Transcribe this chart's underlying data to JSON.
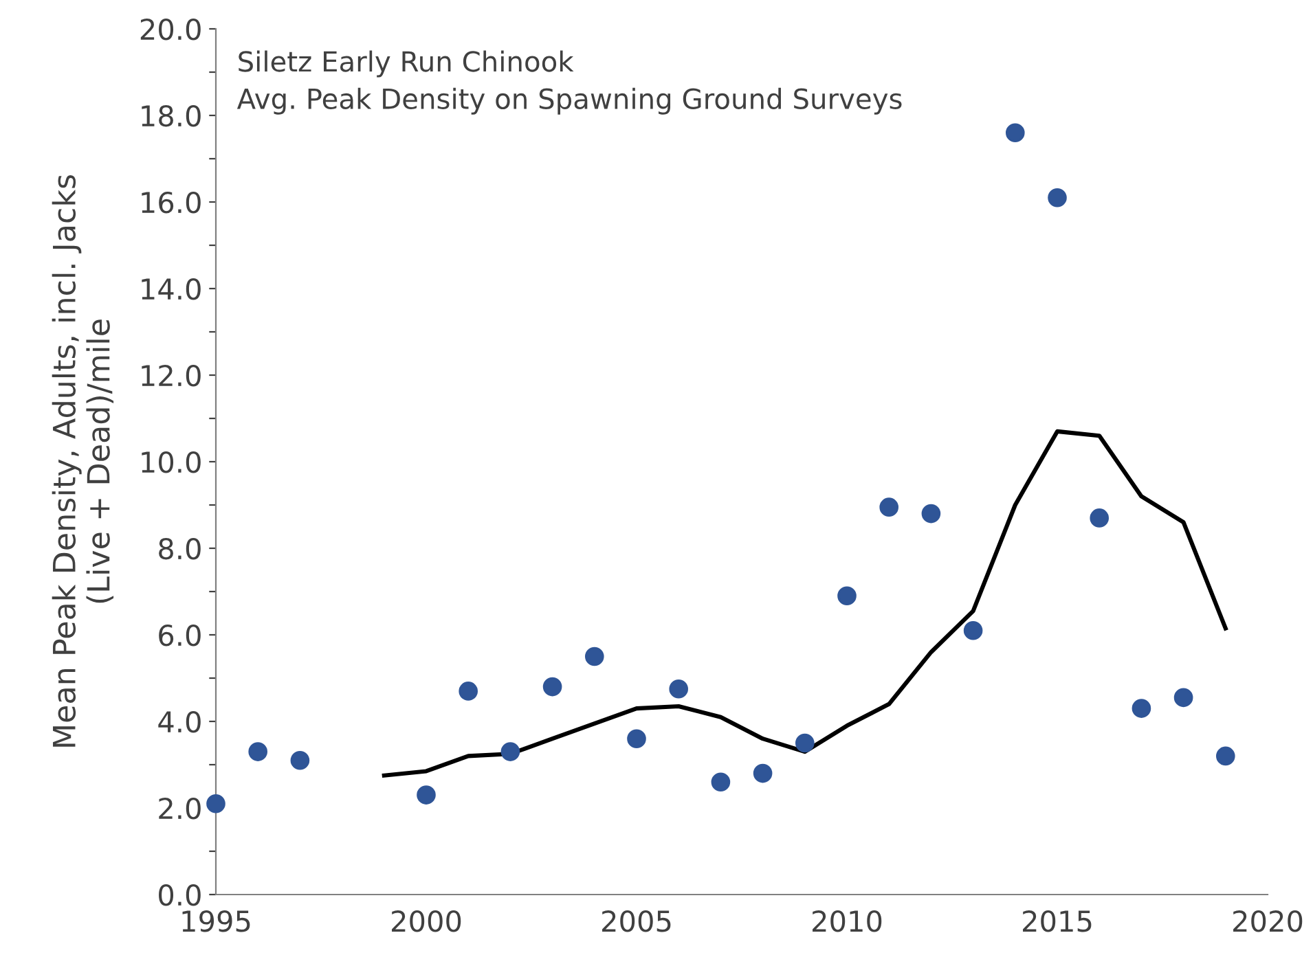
{
  "chart_data": {
    "type": "scatter",
    "title": "Siletz Early Run Chinook",
    "subtitle": "Avg. Peak Density on Spawning Ground Surveys",
    "ylabel": "Mean Peak Density, Adults, incl. Jacks\n(Live + Dead)/mile",
    "xlim": [
      1995,
      2020
    ],
    "xticks": [
      1995,
      2000,
      2005,
      2010,
      2015,
      2020
    ],
    "ylim": [
      0,
      20
    ],
    "yticks": [
      {
        "value": 0,
        "label": "0.0"
      },
      {
        "value": 1,
        "label": null
      },
      {
        "value": 2,
        "label": "2.0"
      },
      {
        "value": 3,
        "label": null
      },
      {
        "value": 4,
        "label": "4.0"
      },
      {
        "value": 5,
        "label": null
      },
      {
        "value": 6,
        "label": "6.0"
      },
      {
        "value": 7,
        "label": null
      },
      {
        "value": 8,
        "label": "8.0"
      },
      {
        "value": 9,
        "label": null
      },
      {
        "value": 10,
        "label": "10.0"
      },
      {
        "value": 11,
        "label": null
      },
      {
        "value": 12,
        "label": "12.0"
      },
      {
        "value": 13,
        "label": null
      },
      {
        "value": 14,
        "label": "14.0"
      },
      {
        "value": 15,
        "label": null
      },
      {
        "value": 16,
        "label": "16.0"
      },
      {
        "value": 17,
        "label": null
      },
      {
        "value": 18,
        "label": "18.0"
      },
      {
        "value": 19,
        "label": null
      },
      {
        "value": 20,
        "label": "20.0"
      }
    ],
    "grid": false,
    "legend": false,
    "series": [
      {
        "color": "#2f5597",
        "marker": "circle",
        "x": [
          1995,
          1996,
          1997,
          2000,
          2001,
          2002,
          2003,
          2004,
          2005,
          2006,
          2007,
          2008,
          2009,
          2010,
          2011,
          2012,
          2013,
          2014,
          2015,
          2016,
          2017,
          2018,
          2019
        ],
        "values": [
          2.1,
          3.3,
          3.1,
          2.3,
          4.7,
          3.3,
          4.8,
          5.5,
          3.6,
          4.75,
          2.6,
          2.8,
          3.5,
          6.9,
          8.95,
          8.8,
          6.1,
          17.6,
          16.1,
          8.7,
          4.3,
          4.55,
          3.2
        ]
      },
      {
        "type": "line",
        "color": "#000000",
        "marker": "none",
        "line_style": "solid",
        "x": [
          1999,
          2000,
          2001,
          2002,
          2003,
          2004,
          2005,
          2006,
          2007,
          2008,
          2009,
          2010,
          2011,
          2012,
          2013,
          2014,
          2015,
          2016,
          2017,
          2018,
          2019
        ],
        "values": [
          2.75,
          2.85,
          3.2,
          3.25,
          3.6,
          3.95,
          4.3,
          4.35,
          4.1,
          3.6,
          3.3,
          3.9,
          4.4,
          5.6,
          6.55,
          9.0,
          10.7,
          10.6,
          9.2,
          8.6,
          6.15
        ]
      }
    ]
  }
}
